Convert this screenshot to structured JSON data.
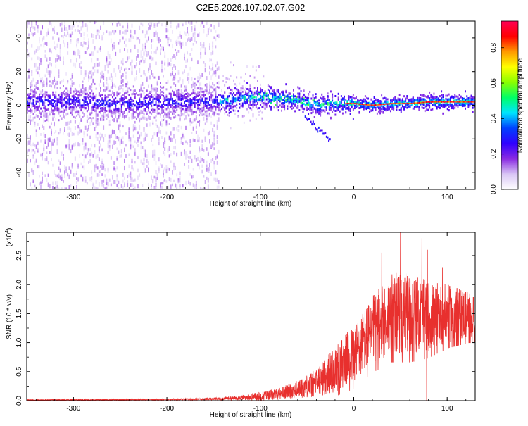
{
  "figure": {
    "title": "C2E5.2026.107.02.07.G02"
  },
  "chart_data": [
    {
      "type": "heatmap",
      "title": "C2E5.2026.107.02.07.G02",
      "xlabel": "Height of straight line (km)",
      "ylabel": "Frequency (Hz)",
      "xlim": [
        -350,
        130
      ],
      "ylim": [
        -50,
        50
      ],
      "xticks": [
        -300,
        -200,
        -100,
        0,
        100
      ],
      "xtick_labels": [
        "-300",
        "-200",
        "-100",
        "0",
        "100"
      ],
      "yticks": [
        -40,
        -20,
        0,
        20,
        40
      ],
      "ytick_labels": [
        "-40",
        "-20",
        "0",
        "20",
        "40"
      ],
      "colorbar": {
        "label": "Normalized spectral amplitude",
        "range": [
          0.0,
          0.95
        ],
        "ticks": [
          0.0,
          0.2,
          0.4,
          0.6,
          0.8
        ],
        "tick_labels": [
          "0.0",
          "0.2",
          "0.4",
          "0.6",
          "0.8"
        ],
        "colors": [
          "#ffffff",
          "#d9c6f5",
          "#8a2be2",
          "#3000ff",
          "#0040ff",
          "#00e5ff",
          "#00ff66",
          "#8aff00",
          "#ffff00",
          "#ff9900",
          "#ff0000",
          "#ff0055"
        ]
      },
      "band_center_hz": [
        {
          "x": -350,
          "y": 2
        },
        {
          "x": -300,
          "y": 2
        },
        {
          "x": -250,
          "y": 1
        },
        {
          "x": -200,
          "y": 2
        },
        {
          "x": -150,
          "y": 2
        },
        {
          "x": -120,
          "y": 4
        },
        {
          "x": -100,
          "y": 5
        },
        {
          "x": -80,
          "y": 4
        },
        {
          "x": -60,
          "y": 3
        },
        {
          "x": -40,
          "y": 0
        },
        {
          "x": -20,
          "y": 1
        },
        {
          "x": 0,
          "y": 1
        },
        {
          "x": 20,
          "y": 0
        },
        {
          "x": 40,
          "y": 1
        },
        {
          "x": 60,
          "y": 1
        },
        {
          "x": 80,
          "y": 2
        },
        {
          "x": 100,
          "y": 2
        },
        {
          "x": 130,
          "y": 2
        }
      ],
      "noise_region_x": [
        -350,
        -145
      ]
    },
    {
      "type": "line",
      "xlabel": "Height of straight line (km)",
      "ylabel": "SNR (10 * v/v)",
      "y_multiplier": "(x10",
      "y_multiplier_exp": "4",
      "y_multiplier_close": ")",
      "xlim": [
        -350,
        130
      ],
      "ylim": [
        0,
        2.9
      ],
      "xticks": [
        -300,
        -200,
        -100,
        0,
        100
      ],
      "xtick_labels": [
        "-300",
        "-200",
        "-100",
        "0",
        "100"
      ],
      "yticks": [
        0.0,
        0.5,
        1.0,
        1.5,
        2.0,
        2.5
      ],
      "ytick_labels": [
        "0.0",
        "0.5",
        "1.0",
        "1.5",
        "2.0",
        "2.5"
      ],
      "series": [
        {
          "name": "SNR",
          "color": "#e8302e",
          "envelope": [
            {
              "x": -350,
              "mean": 0.01,
              "amp": 0.01
            },
            {
              "x": -200,
              "mean": 0.02,
              "amp": 0.01
            },
            {
              "x": -150,
              "mean": 0.03,
              "amp": 0.02
            },
            {
              "x": -120,
              "mean": 0.05,
              "amp": 0.04
            },
            {
              "x": -100,
              "mean": 0.08,
              "amp": 0.08
            },
            {
              "x": -80,
              "mean": 0.12,
              "amp": 0.1
            },
            {
              "x": -60,
              "mean": 0.2,
              "amp": 0.15
            },
            {
              "x": -40,
              "mean": 0.3,
              "amp": 0.25
            },
            {
              "x": -20,
              "mean": 0.55,
              "amp": 0.4
            },
            {
              "x": 0,
              "mean": 0.8,
              "amp": 0.5
            },
            {
              "x": 20,
              "mean": 1.2,
              "amp": 0.6
            },
            {
              "x": 40,
              "mean": 1.5,
              "amp": 0.7
            },
            {
              "x": 60,
              "mean": 1.5,
              "amp": 0.7
            },
            {
              "x": 80,
              "mean": 1.45,
              "amp": 0.6
            },
            {
              "x": 100,
              "mean": 1.5,
              "amp": 0.5
            },
            {
              "x": 130,
              "mean": 1.5,
              "amp": 0.4
            }
          ],
          "peaks": [
            {
              "x": 50,
              "y": 2.9
            },
            {
              "x": 73,
              "y": 2.8
            },
            {
              "x": 79,
              "y": 2.6
            },
            {
              "x": 30,
              "y": 2.55
            },
            {
              "x": 95,
              "y": 2.3
            }
          ],
          "dip": {
            "x": 78,
            "y": 0.0
          }
        }
      ]
    }
  ]
}
